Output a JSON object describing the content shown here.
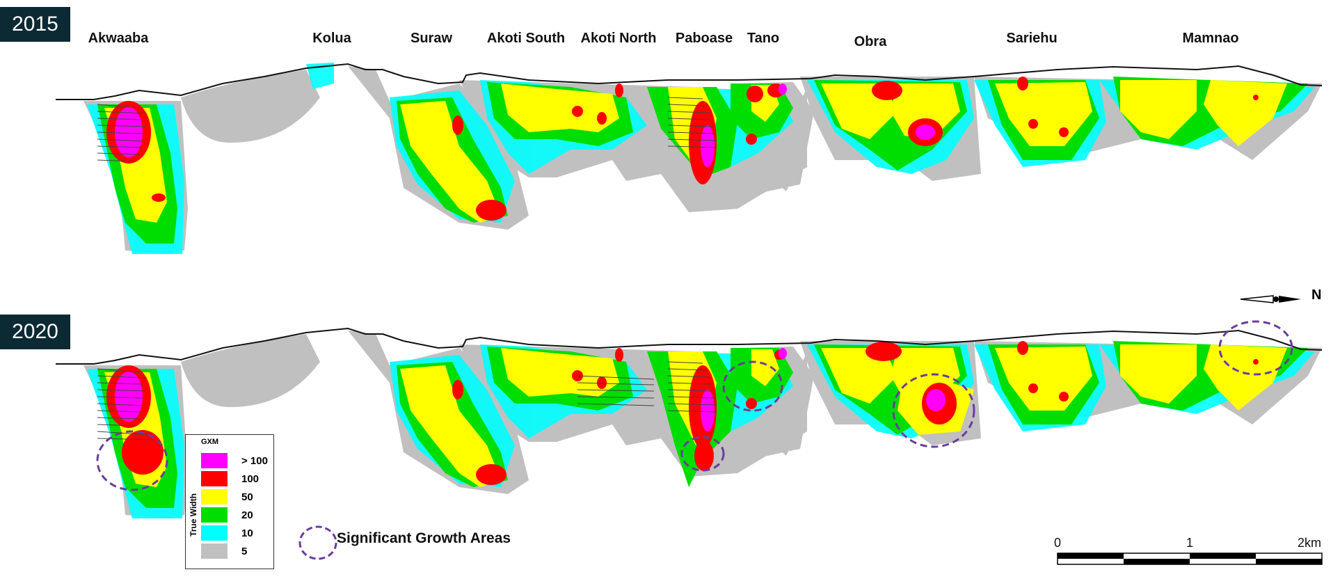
{
  "panels": [
    {
      "year": "2015"
    },
    {
      "year": "2020"
    }
  ],
  "deposits": [
    "Akwaaba",
    "Kolua",
    "Suraw",
    "Akoti South",
    "Akoti North",
    "Paboase",
    "Tano",
    "Obra",
    "Sariehu",
    "Mamnao"
  ],
  "legend": {
    "header": "GXM",
    "axis_label": "True Width",
    "items": [
      {
        "label": "> 100",
        "color": "#ff00ff"
      },
      {
        "label": "100",
        "color": "#ff0000"
      },
      {
        "label": "50",
        "color": "#ffff00"
      },
      {
        "label": "20",
        "color": "#00dd00"
      },
      {
        "label": "10",
        "color": "#00ffff"
      },
      {
        "label": "5",
        "color": "#c0c0c0"
      }
    ]
  },
  "growth_legend": {
    "label": "Significant  Growth Areas",
    "color": "#6a3d9a"
  },
  "scale_bar": {
    "ticks": [
      "0",
      "1",
      "2km"
    ]
  },
  "north_arrow": {
    "label": "N"
  }
}
